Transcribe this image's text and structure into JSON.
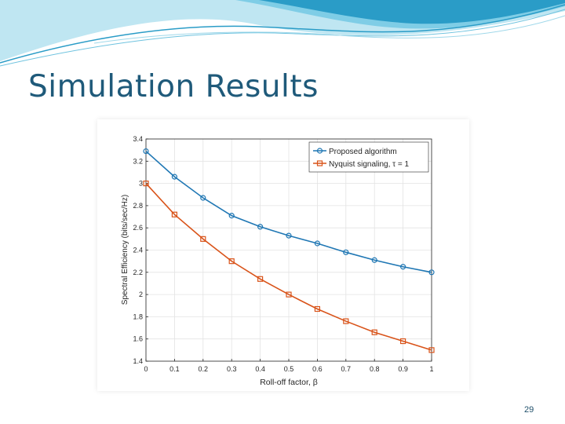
{
  "slide": {
    "title": "Simulation Results",
    "number": "29",
    "theme_colors": {
      "title": "#1f5a7a",
      "wave_dark": "#2a9cc7",
      "wave_light": "#bfe6f2"
    }
  },
  "chart_data": {
    "type": "line",
    "x": [
      0,
      0.1,
      0.2,
      0.3,
      0.4,
      0.5,
      0.6,
      0.7,
      0.8,
      0.9,
      1
    ],
    "xlabel": "Roll-off factor, β",
    "ylabel": "Spectral Efficiency (bits/sec/Hz)",
    "xlim": [
      0,
      1
    ],
    "ylim": [
      1.4,
      3.4
    ],
    "xticks": [
      "0",
      "0.1",
      "0.2",
      "0.3",
      "0.4",
      "0.5",
      "0.6",
      "0.7",
      "0.8",
      "0.9",
      "1"
    ],
    "yticks": [
      "1.4",
      "1.6",
      "1.8",
      "2",
      "2.2",
      "2.4",
      "2.6",
      "2.8",
      "3",
      "3.2",
      "3.4"
    ],
    "grid": true,
    "legend_position": "top-right",
    "series": [
      {
        "name": "Proposed algorithm",
        "color": "#1f77b4",
        "marker": "circle",
        "values": [
          3.29,
          3.06,
          2.87,
          2.71,
          2.61,
          2.53,
          2.46,
          2.38,
          2.31,
          2.25,
          2.2
        ]
      },
      {
        "name": "Nyquist signaling, τ = 1",
        "color": "#d95319",
        "marker": "square",
        "values": [
          3.0,
          2.72,
          2.5,
          2.3,
          2.14,
          2.0,
          1.87,
          1.76,
          1.66,
          1.58,
          1.5
        ]
      }
    ]
  }
}
